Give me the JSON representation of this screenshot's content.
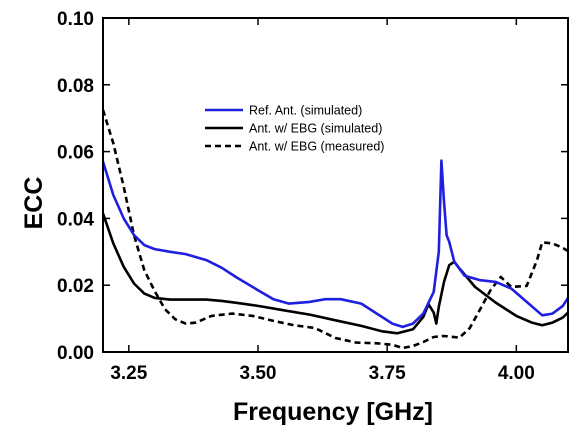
{
  "chart_data": {
    "type": "line",
    "title": "",
    "xlabel": "Frequency [GHz]",
    "ylabel": "ECC",
    "xlim": [
      3.2,
      4.1
    ],
    "ylim": [
      0.0,
      0.1
    ],
    "x_ticks": [
      3.25,
      3.5,
      3.75,
      4.0
    ],
    "x_tick_labels": [
      "3.25",
      "3.50",
      "3.75",
      "4.00"
    ],
    "y_ticks": [
      0.0,
      0.02,
      0.04,
      0.06,
      0.08,
      0.1
    ],
    "y_tick_labels": [
      "0.00",
      "0.02",
      "0.04",
      "0.06",
      "0.08",
      "0.10"
    ],
    "grid": false,
    "legend_position": "center-upper",
    "series": [
      {
        "name": "Ref. Ant. (simulated)",
        "color": "#1f1fe0",
        "dash": "solid",
        "points": [
          [
            3.2,
            0.057
          ],
          [
            3.22,
            0.047
          ],
          [
            3.24,
            0.04
          ],
          [
            3.26,
            0.035
          ],
          [
            3.28,
            0.032
          ],
          [
            3.3,
            0.0308
          ],
          [
            3.33,
            0.03
          ],
          [
            3.36,
            0.0293
          ],
          [
            3.4,
            0.0275
          ],
          [
            3.43,
            0.0252
          ],
          [
            3.46,
            0.0222
          ],
          [
            3.5,
            0.0185
          ],
          [
            3.53,
            0.0158
          ],
          [
            3.56,
            0.0145
          ],
          [
            3.6,
            0.015
          ],
          [
            3.63,
            0.0158
          ],
          [
            3.66,
            0.0158
          ],
          [
            3.7,
            0.0145
          ],
          [
            3.73,
            0.0115
          ],
          [
            3.76,
            0.0085
          ],
          [
            3.78,
            0.0075
          ],
          [
            3.8,
            0.0085
          ],
          [
            3.82,
            0.0115
          ],
          [
            3.84,
            0.018
          ],
          [
            3.85,
            0.03
          ],
          [
            3.855,
            0.0573
          ],
          [
            3.86,
            0.045
          ],
          [
            3.865,
            0.035
          ],
          [
            3.87,
            0.033
          ],
          [
            3.88,
            0.027
          ],
          [
            3.9,
            0.0228
          ],
          [
            3.93,
            0.0215
          ],
          [
            3.96,
            0.021
          ],
          [
            3.99,
            0.019
          ],
          [
            4.02,
            0.015
          ],
          [
            4.05,
            0.011
          ],
          [
            4.07,
            0.0115
          ],
          [
            4.09,
            0.0138
          ],
          [
            4.1,
            0.0162
          ]
        ]
      },
      {
        "name": "Ant. w/ EBG (simulated)",
        "color": "#000000",
        "dash": "solid",
        "points": [
          [
            3.2,
            0.0415
          ],
          [
            3.22,
            0.0325
          ],
          [
            3.24,
            0.0255
          ],
          [
            3.26,
            0.0205
          ],
          [
            3.28,
            0.0175
          ],
          [
            3.3,
            0.0162
          ],
          [
            3.33,
            0.0157
          ],
          [
            3.37,
            0.0157
          ],
          [
            3.4,
            0.0157
          ],
          [
            3.43,
            0.0153
          ],
          [
            3.46,
            0.0147
          ],
          [
            3.5,
            0.0138
          ],
          [
            3.55,
            0.0125
          ],
          [
            3.6,
            0.0112
          ],
          [
            3.65,
            0.0095
          ],
          [
            3.7,
            0.0078
          ],
          [
            3.74,
            0.0062
          ],
          [
            3.77,
            0.0056
          ],
          [
            3.8,
            0.0068
          ],
          [
            3.82,
            0.0105
          ],
          [
            3.83,
            0.0143
          ],
          [
            3.84,
            0.0118
          ],
          [
            3.845,
            0.0085
          ],
          [
            3.85,
            0.0135
          ],
          [
            3.86,
            0.021
          ],
          [
            3.87,
            0.026
          ],
          [
            3.88,
            0.027
          ],
          [
            3.89,
            0.025
          ],
          [
            3.92,
            0.0195
          ],
          [
            3.96,
            0.0148
          ],
          [
            4.0,
            0.0108
          ],
          [
            4.03,
            0.0088
          ],
          [
            4.05,
            0.008
          ],
          [
            4.07,
            0.0088
          ],
          [
            4.09,
            0.0103
          ],
          [
            4.1,
            0.0118
          ]
        ]
      },
      {
        "name": "Ant. w/ EBG (measured)",
        "color": "#000000",
        "dash": "dashed",
        "points": [
          [
            3.2,
            0.0725
          ],
          [
            3.22,
            0.0625
          ],
          [
            3.24,
            0.0495
          ],
          [
            3.26,
            0.035
          ],
          [
            3.28,
            0.0245
          ],
          [
            3.3,
            0.0182
          ],
          [
            3.32,
            0.0128
          ],
          [
            3.34,
            0.0098
          ],
          [
            3.36,
            0.0085
          ],
          [
            3.38,
            0.0088
          ],
          [
            3.41,
            0.0108
          ],
          [
            3.45,
            0.0115
          ],
          [
            3.49,
            0.0108
          ],
          [
            3.53,
            0.0093
          ],
          [
            3.57,
            0.008
          ],
          [
            3.61,
            0.0072
          ],
          [
            3.65,
            0.0042
          ],
          [
            3.69,
            0.0028
          ],
          [
            3.73,
            0.0026
          ],
          [
            3.76,
            0.0022
          ],
          [
            3.78,
            0.0012
          ],
          [
            3.8,
            0.0018
          ],
          [
            3.82,
            0.003
          ],
          [
            3.84,
            0.0045
          ],
          [
            3.86,
            0.0048
          ],
          [
            3.89,
            0.0043
          ],
          [
            3.91,
            0.0072
          ],
          [
            3.93,
            0.0128
          ],
          [
            3.95,
            0.0185
          ],
          [
            3.97,
            0.0225
          ],
          [
            3.99,
            0.0195
          ],
          [
            4.02,
            0.0198
          ],
          [
            4.04,
            0.0275
          ],
          [
            4.05,
            0.0328
          ],
          [
            4.07,
            0.0325
          ],
          [
            4.09,
            0.0312
          ],
          [
            4.1,
            0.0302
          ]
        ]
      }
    ]
  }
}
